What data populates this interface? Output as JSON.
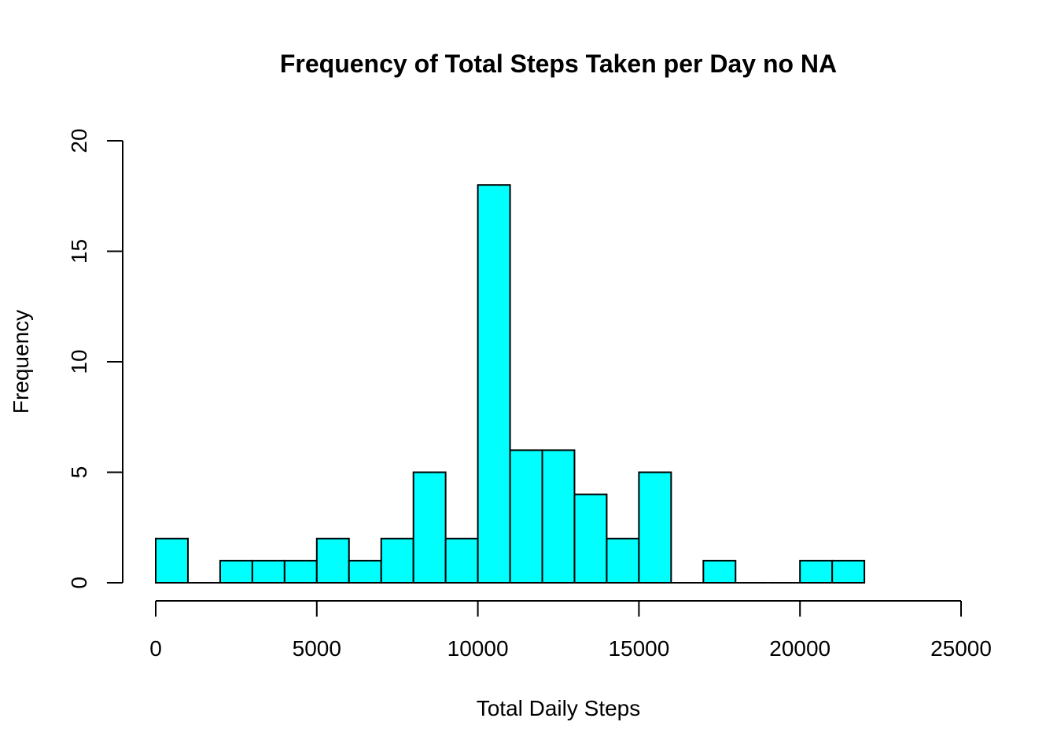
{
  "chart_data": {
    "type": "bar",
    "title": "Frequency of Total Steps Taken per Day no NA",
    "xlabel": "Total Daily Steps",
    "ylabel": "Frequency",
    "xlim": [
      0,
      25000
    ],
    "ylim": [
      0,
      20
    ],
    "x_ticks": [
      "0",
      "5000",
      "10000",
      "15000",
      "20000",
      "25000"
    ],
    "y_ticks": [
      "0",
      "5",
      "10",
      "15",
      "20"
    ],
    "grid": false,
    "legend": "none",
    "bar_color": "#00FFFF",
    "bar_border_color": "#000000",
    "bins": [
      {
        "start": 0,
        "end": 1000,
        "count": 2
      },
      {
        "start": 1000,
        "end": 2000,
        "count": 0
      },
      {
        "start": 2000,
        "end": 3000,
        "count": 1
      },
      {
        "start": 3000,
        "end": 4000,
        "count": 1
      },
      {
        "start": 4000,
        "end": 5000,
        "count": 1
      },
      {
        "start": 5000,
        "end": 6000,
        "count": 2
      },
      {
        "start": 6000,
        "end": 7000,
        "count": 1
      },
      {
        "start": 7000,
        "end": 8000,
        "count": 2
      },
      {
        "start": 8000,
        "end": 9000,
        "count": 5
      },
      {
        "start": 9000,
        "end": 10000,
        "count": 2
      },
      {
        "start": 10000,
        "end": 11000,
        "count": 18
      },
      {
        "start": 11000,
        "end": 12000,
        "count": 6
      },
      {
        "start": 12000,
        "end": 13000,
        "count": 6
      },
      {
        "start": 13000,
        "end": 14000,
        "count": 4
      },
      {
        "start": 14000,
        "end": 15000,
        "count": 2
      },
      {
        "start": 15000,
        "end": 16000,
        "count": 5
      },
      {
        "start": 16000,
        "end": 17000,
        "count": 0
      },
      {
        "start": 17000,
        "end": 18000,
        "count": 1
      },
      {
        "start": 18000,
        "end": 19000,
        "count": 0
      },
      {
        "start": 19000,
        "end": 20000,
        "count": 0
      },
      {
        "start": 20000,
        "end": 21000,
        "count": 1
      },
      {
        "start": 21000,
        "end": 22000,
        "count": 1
      }
    ]
  }
}
